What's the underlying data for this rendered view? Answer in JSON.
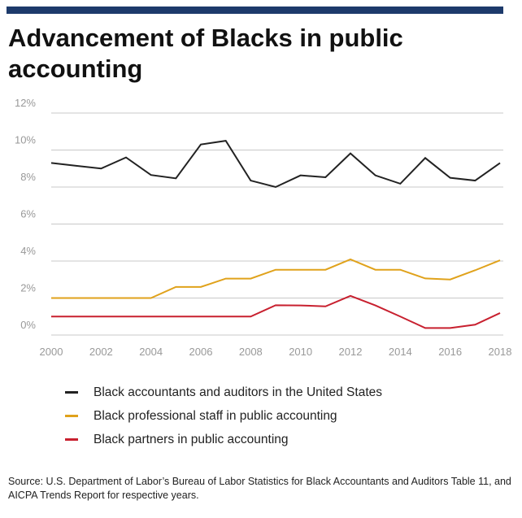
{
  "title": "Advancement of Blacks in public accounting",
  "chart_data": {
    "type": "line",
    "title": "Advancement of Blacks in public accounting",
    "xlabel": "",
    "ylabel": "",
    "x": [
      2000,
      2001,
      2002,
      2003,
      2004,
      2005,
      2006,
      2007,
      2008,
      2009,
      2010,
      2011,
      2012,
      2013,
      2014,
      2015,
      2016,
      2017,
      2018
    ],
    "x_ticks": [
      "2000",
      "2002",
      "2004",
      "2006",
      "2008",
      "2010",
      "2012",
      "2014",
      "2016",
      "2018"
    ],
    "y_ticks": [
      "0%",
      "2%",
      "4%",
      "6%",
      "8%",
      "10%",
      "12%"
    ],
    "ylim": [
      0,
      12
    ],
    "grid": true,
    "legend_placement": "bottom",
    "series": [
      {
        "name": "Black accountants and auditors in the United States",
        "color": "#222222",
        "values": [
          9.3,
          9.15,
          9.0,
          9.6,
          8.65,
          8.47,
          10.3,
          10.5,
          8.35,
          8.0,
          8.63,
          8.53,
          9.82,
          8.63,
          8.18,
          9.57,
          8.5,
          8.35,
          9.3
        ]
      },
      {
        "name": "Black professional staff in public accounting",
        "color": "#e0a21b",
        "values": [
          2.0,
          2.0,
          2.0,
          2.0,
          2.0,
          2.6,
          2.6,
          3.05,
          3.05,
          3.53,
          3.53,
          3.53,
          4.09,
          3.53,
          3.53,
          3.06,
          3.0,
          3.5,
          4.04
        ]
      },
      {
        "name": "Black partners in public accounting",
        "color": "#c8202f",
        "values": [
          1.0,
          1.0,
          1.0,
          1.0,
          1.0,
          1.0,
          1.0,
          1.0,
          1.0,
          1.61,
          1.6,
          1.55,
          2.12,
          1.6,
          1.0,
          0.38,
          0.38,
          0.56,
          1.19
        ]
      }
    ]
  },
  "source": "Source: U.S. Department of Labor’s Bureau of Labor Statistics for Black Accountants and Auditors Table 11, and AICPA Trends Report for respective years."
}
